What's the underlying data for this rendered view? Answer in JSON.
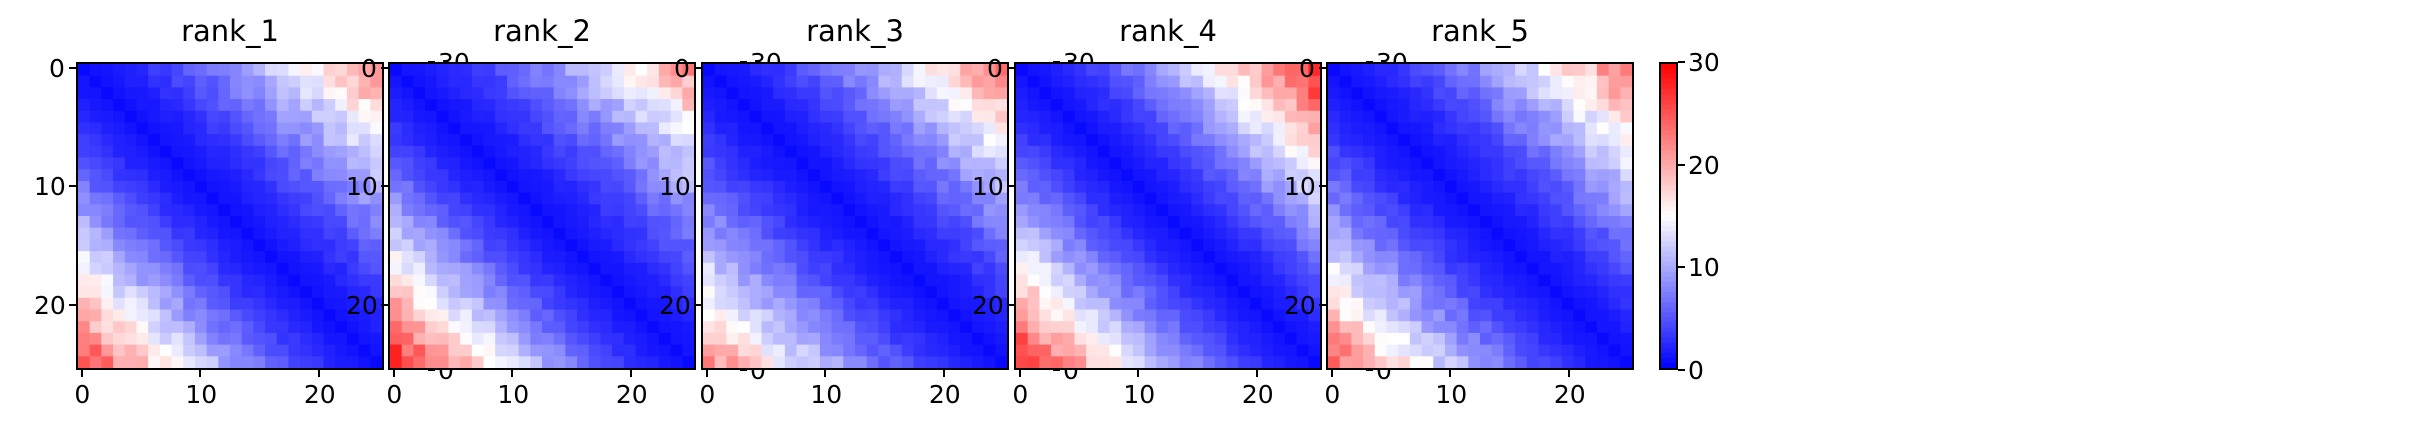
{
  "chart_data": [
    {
      "type": "heatmap",
      "title": "rank_1",
      "n": 26,
      "x_ticks": [
        0,
        10,
        20
      ],
      "y_ticks": [
        0,
        10,
        20
      ],
      "xlim": [
        -0.5,
        25.5
      ],
      "ylim": [
        25.5,
        -0.5
      ],
      "colormap": "bwr",
      "colorbar_ticks": [
        0,
        10,
        20,
        30
      ],
      "clim": [
        0,
        30
      ],
      "corner_values": {
        "diagonal": 1,
        "top_right": 22,
        "bottom_left": 26
      },
      "grid": false
    },
    {
      "type": "heatmap",
      "title": "rank_2",
      "n": 26,
      "x_ticks": [
        0,
        10,
        20
      ],
      "y_ticks": [
        0,
        10,
        20
      ],
      "xlim": [
        -0.5,
        25.5
      ],
      "ylim": [
        25.5,
        -0.5
      ],
      "colormap": "bwr",
      "colorbar_ticks": [
        0,
        10,
        20,
        30
      ],
      "clim": [
        0,
        30
      ],
      "corner_values": {
        "diagonal": 1,
        "top_right": 21,
        "bottom_left": 28
      },
      "grid": false
    },
    {
      "type": "heatmap",
      "title": "rank_3",
      "n": 26,
      "x_ticks": [
        0,
        10,
        20
      ],
      "y_ticks": [
        0,
        10,
        20
      ],
      "xlim": [
        -0.5,
        25.5
      ],
      "ylim": [
        25.5,
        -0.5
      ],
      "colormap": "bwr",
      "colorbar_ticks": [
        0,
        10,
        20,
        30
      ],
      "clim": [
        0,
        30
      ],
      "corner_values": {
        "diagonal": 1,
        "top_right": 23,
        "bottom_left": 22
      },
      "grid": false
    },
    {
      "type": "heatmap",
      "title": "rank_4",
      "n": 26,
      "x_ticks": [
        0,
        10,
        20
      ],
      "y_ticks": [
        0,
        10,
        20
      ],
      "xlim": [
        -0.5,
        25.5
      ],
      "ylim": [
        25.5,
        -0.5
      ],
      "colormap": "bwr",
      "colorbar_ticks": [
        0,
        10,
        20,
        30
      ],
      "clim": [
        0,
        30
      ],
      "corner_values": {
        "diagonal": 1,
        "top_right": 28,
        "bottom_left": 28
      },
      "grid": false
    },
    {
      "type": "heatmap",
      "title": "rank_5",
      "n": 26,
      "x_ticks": [
        0,
        10,
        20
      ],
      "y_ticks": [
        0,
        10,
        20
      ],
      "xlim": [
        -0.5,
        25.5
      ],
      "ylim": [
        25.5,
        -0.5
      ],
      "colormap": "bwr",
      "colorbar_ticks": [
        0,
        10,
        20,
        30
      ],
      "clim": [
        0,
        30
      ],
      "corner_values": {
        "diagonal": 1,
        "top_right": 23,
        "bottom_left": 24
      },
      "grid": false
    }
  ]
}
